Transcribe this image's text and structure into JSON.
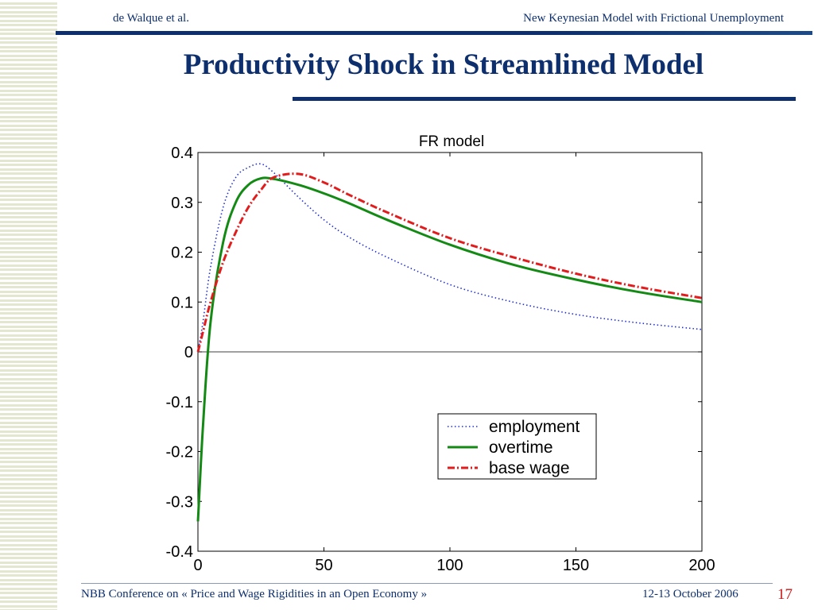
{
  "slide": {
    "header_left": "de Walque et al.",
    "header_right": "New Keynesian Model  with Frictional Unemployment",
    "title": "Productivity Shock in Streamlined Model",
    "footer_left": "NBB Conference on « Price and Wage Rigidities in an Open Economy »",
    "footer_date": "12-13 October 2006",
    "page_number": "17"
  },
  "colors": {
    "navy": "#0d2f6e",
    "employment": "#1f2fd8",
    "overtime": "#138a13",
    "base_wage": "#e21c1c",
    "page_number": "#c81818"
  },
  "chart_data": {
    "type": "line",
    "title": "FR model",
    "xlabel": "",
    "ylabel": "",
    "xlim": [
      0,
      200
    ],
    "ylim": [
      -0.4,
      0.4
    ],
    "x_ticks": [
      0,
      50,
      100,
      150,
      200
    ],
    "y_ticks": [
      0.4,
      0.3,
      0.2,
      0.1,
      0,
      -0.1,
      -0.2,
      -0.3,
      -0.4
    ],
    "x_tick_labels": [
      "0",
      "50",
      "100",
      "150",
      "200"
    ],
    "y_tick_labels": [
      "0.4",
      "0.3",
      "0.2",
      "0.1",
      "0",
      "-0.1",
      "-0.2",
      "-0.3",
      "-0.4"
    ],
    "zero_line": true,
    "grid": false,
    "legend_position": "lower-right",
    "x": [
      0,
      2,
      5,
      10,
      15,
      20,
      25,
      30,
      40,
      50,
      60,
      75,
      100,
      125,
      150,
      175,
      200
    ],
    "series": [
      {
        "name": "employment",
        "style": "dotted",
        "values": [
          0.0,
          0.06,
          0.17,
          0.29,
          0.35,
          0.37,
          0.377,
          0.36,
          0.31,
          0.265,
          0.23,
          0.19,
          0.135,
          0.1,
          0.075,
          0.058,
          0.045
        ]
      },
      {
        "name": "overtime",
        "style": "solid",
        "values": [
          -0.34,
          -0.15,
          0.06,
          0.22,
          0.3,
          0.335,
          0.348,
          0.347,
          0.335,
          0.318,
          0.298,
          0.265,
          0.215,
          0.175,
          0.145,
          0.12,
          0.1
        ]
      },
      {
        "name": "base wage",
        "style": "dash-dot",
        "values": [
          0.0,
          0.04,
          0.1,
          0.18,
          0.24,
          0.29,
          0.325,
          0.35,
          0.357,
          0.34,
          0.315,
          0.28,
          0.228,
          0.19,
          0.157,
          0.13,
          0.108
        ]
      }
    ]
  }
}
